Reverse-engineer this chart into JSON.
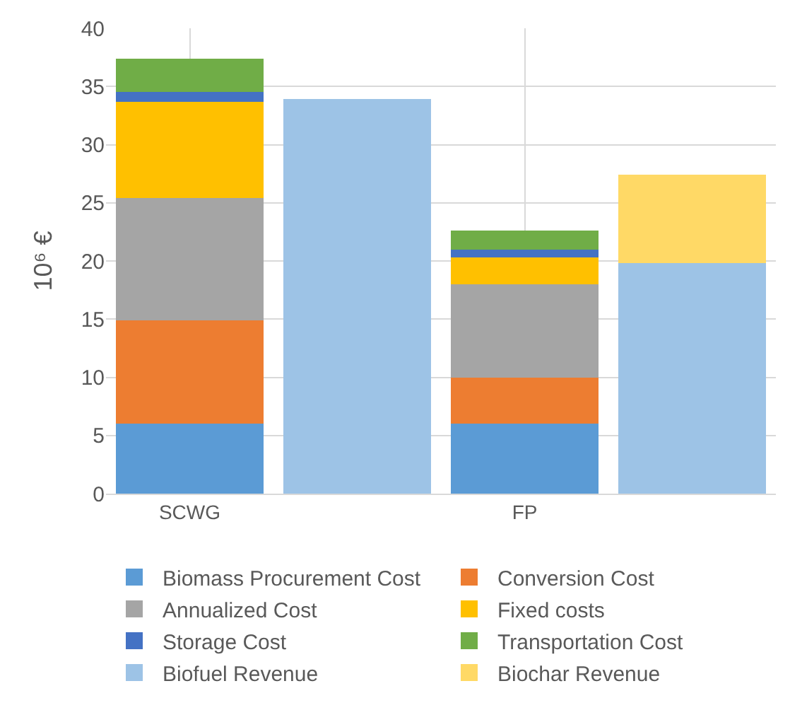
{
  "chart_data": {
    "type": "bar",
    "stacked": true,
    "ylabel": "10⁶ €",
    "categories": [
      "SCWG",
      null,
      "FP",
      null
    ],
    "series": [
      {
        "name": "Biomass Procurement Cost",
        "color": "#5b9bd5",
        "values": [
          6.0,
          null,
          6.0,
          null
        ]
      },
      {
        "name": "Conversion Cost",
        "color": "#ed7d31",
        "values": [
          8.9,
          null,
          4.0,
          null
        ]
      },
      {
        "name": "Annualized Cost",
        "color": "#a5a5a5",
        "values": [
          10.5,
          null,
          8.0,
          null
        ]
      },
      {
        "name": "Fixed costs",
        "color": "#ffc000",
        "values": [
          8.3,
          null,
          2.3,
          null
        ]
      },
      {
        "name": "Storage Cost",
        "color": "#4472c4",
        "values": [
          0.8,
          null,
          0.7,
          null
        ]
      },
      {
        "name": "Transportation Cost",
        "color": "#70ad47",
        "values": [
          2.9,
          null,
          1.6,
          null
        ]
      },
      {
        "name": "Biofuel Revenue",
        "color": "#9dc3e6",
        "values": [
          null,
          33.9,
          null,
          19.8
        ]
      },
      {
        "name": "Biochar Revenue",
        "color": "#ffd966",
        "values": [
          null,
          null,
          null,
          7.6
        ]
      }
    ],
    "ylim": [
      0,
      40
    ],
    "yticks": [
      0,
      5,
      10,
      15,
      20,
      25,
      30,
      35,
      40
    ],
    "grid": true,
    "legend": "bottom"
  }
}
